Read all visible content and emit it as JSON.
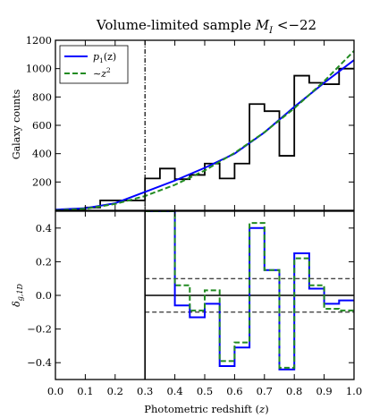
{
  "chart_data": {
    "type": "line",
    "title": "Volume-limited sample M_I < -22",
    "title_parts": {
      "prefix": "Volume-limited sample ",
      "var": "M",
      "sub": "I",
      "rel": " <−22"
    },
    "xlabel": "Photometric redshift (z)",
    "xlabel_parts": {
      "prefix": "Photometric redshift (",
      "var": "z",
      "suffix": ")"
    },
    "xlim": [
      0.0,
      1.0
    ],
    "x_ticks": [
      "0.0",
      "0.1",
      "0.2",
      "0.3",
      "0.4",
      "0.5",
      "0.6",
      "0.7",
      "0.8",
      "0.9",
      "1.0"
    ],
    "grid": false,
    "panels": [
      {
        "name": "top",
        "ylabel": "Galaxy counts",
        "ylim": [
          0,
          1200
        ],
        "y_ticks": [
          "200",
          "400",
          "600",
          "800",
          "1000",
          "1200"
        ],
        "legend": {
          "placement": "top-left",
          "entries": [
            {
              "label": "p1(z)",
              "label_parts": {
                "var": "p",
                "sub": "1",
                "rest": "(z)"
              },
              "color": "#0000ff",
              "style": "solid"
            },
            {
              "label": "~z^2",
              "label_parts": {
                "prefix": "∼",
                "var": "z",
                "sup": "2"
              },
              "color": "#228b22",
              "style": "dashed"
            }
          ]
        },
        "vertical_line": {
          "x": 0.3,
          "style": "dash-dot",
          "color": "#000000"
        },
        "series": [
          {
            "name": "Galaxy counts",
            "kind": "step",
            "color": "#000000",
            "bin_edges": [
              0.0,
              0.05,
              0.1,
              0.15,
              0.2,
              0.25,
              0.3,
              0.35,
              0.4,
              0.45,
              0.5,
              0.55,
              0.6,
              0.65,
              0.7,
              0.75,
              0.8,
              0.85,
              0.9,
              0.95,
              1.0
            ],
            "values": [
              0,
              5,
              20,
              70,
              70,
              70,
              225,
              295,
              220,
              250,
              330,
              225,
              330,
              750,
              700,
              385,
              950,
              900,
              890,
              1000
            ]
          },
          {
            "name": "p1(z)",
            "kind": "line",
            "color": "#0000ff",
            "x": [
              0.0,
              0.1,
              0.2,
              0.3,
              0.4,
              0.5,
              0.6,
              0.7,
              0.8,
              0.9,
              1.0
            ],
            "y": [
              5,
              15,
              50,
              130,
              210,
              300,
              400,
              550,
              730,
              900,
              1060
            ]
          },
          {
            "name": "~z^2",
            "kind": "line",
            "color": "#228b22",
            "x": [
              0.0,
              0.1,
              0.2,
              0.3,
              0.4,
              0.5,
              0.6,
              0.7,
              0.8,
              0.9,
              1.0
            ],
            "y": [
              0,
              11,
              45,
              101,
              180,
              281,
              405,
              551,
              720,
              911,
              1125
            ]
          }
        ]
      },
      {
        "name": "bottom",
        "ylabel": "δ_g,1D",
        "ylabel_parts": {
          "var": "δ",
          "sub": "g,1D"
        },
        "ylim": [
          -0.5,
          0.5
        ],
        "y_ticks": [
          "−0.4",
          "−0.2",
          "0.0",
          "0.2",
          "0.4"
        ],
        "vertical_line": {
          "x": 0.3,
          "color": "#000000"
        },
        "hlines": [
          {
            "y": 0.0,
            "style": "solid",
            "color": "#000000",
            "x_from": 0.3
          },
          {
            "y": 0.1,
            "style": "dashed",
            "color": "#000000",
            "x_from": 0.3
          },
          {
            "y": -0.1,
            "style": "dashed",
            "color": "#000000",
            "x_from": 0.3
          }
        ],
        "series": [
          {
            "name": "p1(z)",
            "kind": "step",
            "color": "#0000ff",
            "bin_edges": [
              0.3,
              0.35,
              0.4,
              0.45,
              0.5,
              0.55,
              0.6,
              0.65,
              0.7,
              0.75,
              0.8,
              0.85,
              0.9,
              0.95,
              1.0
            ],
            "values": [
              0.5,
              0.5,
              -0.06,
              -0.13,
              -0.05,
              -0.42,
              -0.31,
              0.4,
              0.15,
              -0.44,
              0.25,
              0.04,
              -0.05,
              -0.03
            ]
          },
          {
            "name": "~z^2",
            "kind": "step",
            "color": "#228b22",
            "bin_edges": [
              0.3,
              0.35,
              0.4,
              0.45,
              0.5,
              0.55,
              0.6,
              0.65,
              0.7,
              0.75,
              0.8,
              0.85,
              0.9,
              0.95,
              1.0
            ],
            "values": [
              0.5,
              0.5,
              0.06,
              -0.09,
              0.03,
              -0.39,
              -0.28,
              0.43,
              0.15,
              -0.43,
              0.22,
              0.06,
              -0.08,
              -0.09
            ]
          }
        ]
      }
    ]
  }
}
